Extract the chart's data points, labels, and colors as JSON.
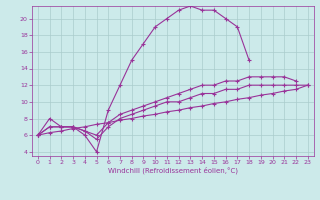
{
  "background_color": "#cceaea",
  "grid_color": "#aacccc",
  "line_color": "#993399",
  "xlabel": "Windchill (Refroidissement éolien,°C)",
  "xlim": [
    -0.5,
    23.5
  ],
  "ylim": [
    3.5,
    21.5
  ],
  "xticks": [
    0,
    1,
    2,
    3,
    4,
    5,
    6,
    7,
    8,
    9,
    10,
    11,
    12,
    13,
    14,
    15,
    16,
    17,
    18,
    19,
    20,
    21,
    22,
    23
  ],
  "yticks": [
    4,
    6,
    8,
    10,
    12,
    14,
    16,
    18,
    20
  ],
  "line1_x": [
    0,
    1,
    2,
    3,
    4,
    5,
    6,
    7,
    8,
    9,
    10,
    11,
    12,
    13,
    14,
    15,
    16,
    17,
    18
  ],
  "line1_y": [
    6,
    8,
    7,
    7,
    6,
    4,
    9,
    12,
    15,
    17,
    19,
    20,
    21,
    21.5,
    21,
    21,
    20,
    19,
    15
  ],
  "line2_x": [
    0,
    1,
    2,
    3,
    4,
    5,
    6,
    7,
    8,
    9,
    10,
    11,
    12,
    13,
    14,
    15,
    16,
    17,
    18,
    19,
    20,
    21,
    22
  ],
  "line2_y": [
    6,
    7,
    7,
    7,
    6.5,
    6,
    7.5,
    8.5,
    9,
    9.5,
    10,
    10.5,
    11,
    11.5,
    12,
    12,
    12.5,
    12.5,
    13,
    13,
    13,
    13,
    12.5
  ],
  "line3_x": [
    0,
    1,
    2,
    3,
    4,
    5,
    6,
    7,
    8,
    9,
    10,
    11,
    12,
    13,
    14,
    15,
    16,
    17,
    18,
    19,
    20,
    21,
    22,
    23
  ],
  "line3_y": [
    6,
    7,
    7,
    7,
    6.5,
    5.5,
    7,
    8,
    8.5,
    9,
    9.5,
    10,
    10,
    10.5,
    11,
    11,
    11.5,
    11.5,
    12,
    12,
    12,
    12,
    12,
    12
  ],
  "line4_x": [
    0,
    1,
    2,
    3,
    4,
    5,
    6,
    7,
    8,
    9,
    10,
    11,
    12,
    13,
    14,
    15,
    16,
    17,
    18,
    19,
    20,
    21,
    22,
    23
  ],
  "line4_y": [
    6,
    6.3,
    6.5,
    6.8,
    7,
    7.3,
    7.5,
    7.8,
    8,
    8.3,
    8.5,
    8.8,
    9,
    9.3,
    9.5,
    9.8,
    10,
    10.3,
    10.5,
    10.8,
    11,
    11.3,
    11.5,
    12
  ]
}
